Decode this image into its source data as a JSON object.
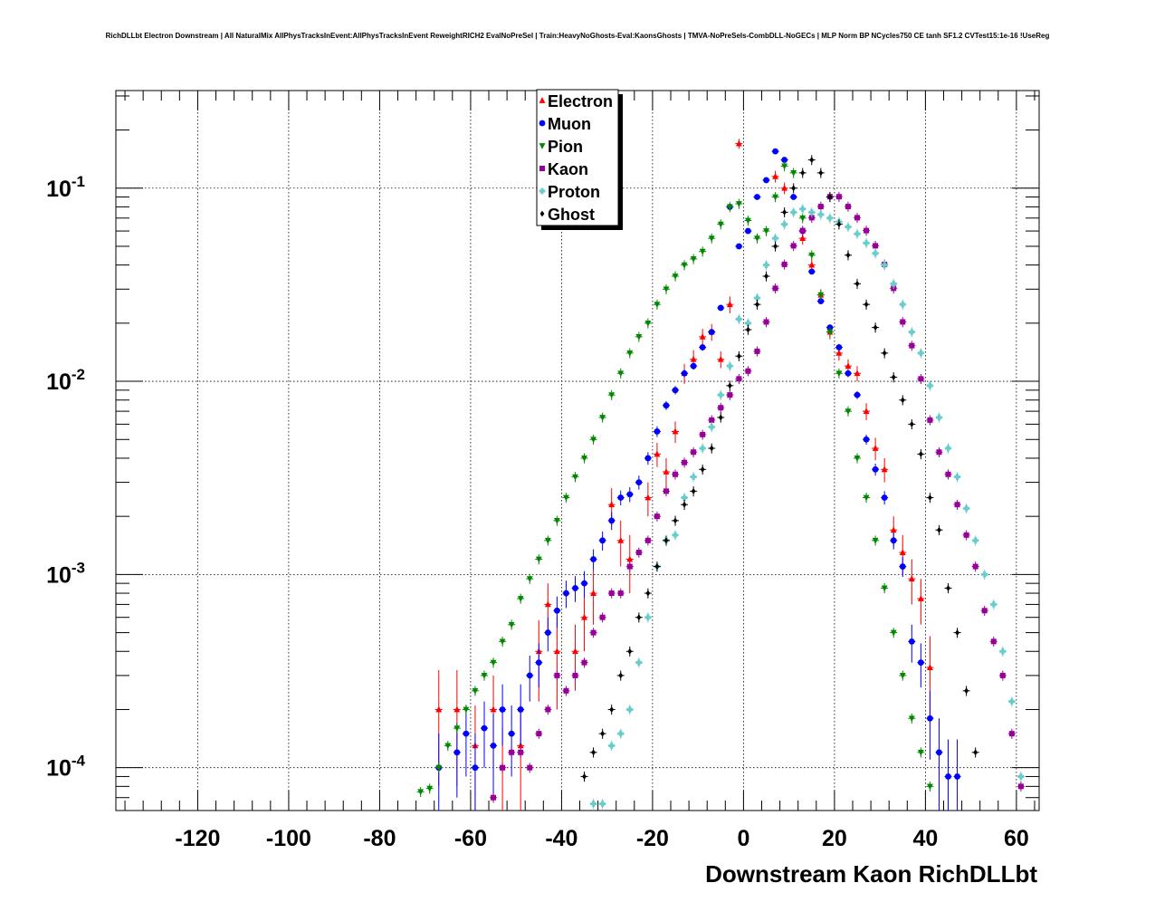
{
  "chart_data": {
    "type": "scatter",
    "title": "RichDLLbt Electron Downstream | All NaturalMix AllPhysTracksInEvent:AllPhysTracksInEvent ReweightRICH2 EvalNoPreSel | Train:HeavyNoGhosts-Eval:KaonsGhosts | TMVA-NoPreSels-CombDLL-NoGECs | MLP Norm BP NCycles750 CE tanh SF1.2 CVTest15:1e-16 !UseReg",
    "xlabel": "Downstream Kaon RichDLLbt",
    "ylabel": "",
    "xlim": [
      -138,
      65
    ],
    "ylim": [
      6e-05,
      0.32
    ],
    "yscale": "log",
    "grid": true,
    "legend_position": "top-center",
    "x_ticks": [
      -120,
      -100,
      -80,
      -60,
      -40,
      -20,
      0,
      20,
      40,
      60
    ],
    "x_tick_labels": [
      "-120",
      "-100",
      "-80",
      "-60",
      "-40",
      "-20",
      "0",
      "20",
      "40",
      "60"
    ],
    "y_ticks": [
      {
        "value": 0.1,
        "base": "10",
        "exp": "-1"
      },
      {
        "value": 0.01,
        "base": "10",
        "exp": "-2"
      },
      {
        "value": 0.001,
        "base": "10",
        "exp": "-3"
      },
      {
        "value": 0.0001,
        "base": "10",
        "exp": "-4"
      }
    ],
    "series": [
      {
        "name": "Electron",
        "color": "#ff0000",
        "marker": "triangle-up",
        "x": [
          -67,
          -63,
          -59,
          -55,
          -53,
          -49,
          -45,
          -43,
          -41,
          -37,
          -35,
          -33,
          -29,
          -27,
          -25,
          -21,
          -19,
          -17,
          -15,
          -13,
          -11,
          -9,
          -7,
          -5,
          -3,
          -1,
          7,
          9,
          13,
          15,
          17,
          19,
          21,
          23,
          25,
          27,
          29,
          31,
          33,
          35,
          37,
          39,
          41
        ],
        "values": [
          0.0002,
          0.0002,
          0.00013,
          0.0002,
          0.0001,
          0.00013,
          0.0004,
          0.0007,
          0.0004,
          0.0004,
          0.0006,
          0.0008,
          0.0023,
          0.0015,
          0.0012,
          0.0025,
          0.0042,
          0.0034,
          0.0055,
          0.011,
          0.013,
          0.017,
          0.018,
          0.013,
          0.025,
          0.17,
          0.115,
          0.1,
          0.055,
          0.04,
          0.028,
          0.018,
          0.014,
          0.012,
          0.011,
          0.007,
          0.0045,
          0.0035,
          0.0017,
          0.0013,
          0.00095,
          0.00075,
          0.00033
        ],
        "errors": [
          0.00012,
          0.00012,
          8e-05,
          0.0001,
          6e-05,
          8e-05,
          0.00018,
          0.0002,
          0.0002,
          0.00015,
          0.0002,
          0.00025,
          0.0005,
          0.0004,
          0.0004,
          0.0005,
          0.0006,
          0.0006,
          0.0007,
          0.0013,
          0.0015,
          0.0017,
          0.0018,
          0.0013,
          0.0025,
          0.01,
          0.008,
          0.007,
          0.004,
          0.003,
          0.002,
          0.0015,
          0.0012,
          0.001,
          0.001,
          0.0007,
          0.0006,
          0.0005,
          0.0003,
          0.0003,
          0.00025,
          0.0002,
          0.00015
        ]
      },
      {
        "name": "Muon",
        "color": "#0000ff",
        "marker": "circle",
        "x": [
          -67,
          -63,
          -61,
          -59,
          -57,
          -55,
          -53,
          -51,
          -49,
          -47,
          -45,
          -43,
          -41,
          -39,
          -37,
          -35,
          -33,
          -31,
          -29,
          -27,
          -25,
          -23,
          -21,
          -19,
          -17,
          -15,
          -13,
          -11,
          -9,
          -7,
          -5,
          -3,
          -1,
          1,
          3,
          5,
          7,
          9,
          11,
          13,
          15,
          17,
          19,
          21,
          23,
          25,
          27,
          29,
          31,
          33,
          35,
          37,
          39,
          41,
          43,
          45,
          47
        ],
        "values": [
          0.0001,
          0.00012,
          0.00015,
          0.0001,
          0.00016,
          0.00013,
          0.0002,
          0.00015,
          0.0002,
          0.0003,
          0.00035,
          0.0005,
          0.00065,
          0.0008,
          0.00085,
          0.0009,
          0.0012,
          0.0015,
          0.0019,
          0.0025,
          0.0026,
          0.003,
          0.004,
          0.0055,
          0.0075,
          0.009,
          0.011,
          0.012,
          0.015,
          0.018,
          0.024,
          0.08,
          0.05,
          0.06,
          0.09,
          0.11,
          0.155,
          0.14,
          0.09,
          0.06,
          0.037,
          0.026,
          0.019,
          0.015,
          0.011,
          0.0085,
          0.005,
          0.0035,
          0.0025,
          0.0015,
          0.0011,
          0.00045,
          0.00035,
          0.00018,
          0.00012,
          9e-05,
          9e-05
        ],
        "errors": [
          5e-05,
          5e-05,
          6e-05,
          5e-05,
          6e-05,
          6e-05,
          7e-05,
          6e-05,
          7e-05,
          8e-05,
          9e-05,
          0.0001,
          0.00012,
          0.00013,
          0.00013,
          0.00014,
          0.00015,
          0.00017,
          0.0002,
          0.00022,
          0.00023,
          0.00025,
          0.0003,
          0.00035,
          0.0004,
          0.00045,
          0.0005,
          0.0005,
          0.0006,
          0.0007,
          0.0008,
          0.002,
          0.0015,
          0.0016,
          0.002,
          0.002,
          0.003,
          0.003,
          0.002,
          0.0015,
          0.001,
          0.0008,
          0.0007,
          0.0006,
          0.0005,
          0.0004,
          0.0003,
          0.00025,
          0.0002,
          0.00015,
          0.00013,
          0.0001,
          9e-05,
          7e-05,
          6e-05,
          5e-05,
          5e-05
        ]
      },
      {
        "name": "Pion",
        "color": "#008800",
        "marker": "triangle-down",
        "x": [
          -71,
          -69,
          -67,
          -65,
          -63,
          -61,
          -59,
          -57,
          -55,
          -53,
          -51,
          -49,
          -47,
          -45,
          -43,
          -41,
          -39,
          -37,
          -35,
          -33,
          -31,
          -29,
          -27,
          -25,
          -23,
          -21,
          -19,
          -17,
          -15,
          -13,
          -11,
          -9,
          -7,
          -5,
          -3,
          -1,
          1,
          3,
          5,
          7,
          9,
          11,
          13,
          15,
          17,
          19,
          21,
          23,
          25,
          27,
          29,
          31,
          33,
          35,
          37,
          39,
          41
        ],
        "values": [
          7.5e-05,
          7.8e-05,
          0.0001,
          0.00013,
          0.00016,
          0.0002,
          0.00025,
          0.0003,
          0.00035,
          0.00045,
          0.00055,
          0.00075,
          0.00095,
          0.0012,
          0.0015,
          0.0019,
          0.0025,
          0.0032,
          0.004,
          0.005,
          0.0065,
          0.0085,
          0.011,
          0.014,
          0.017,
          0.02,
          0.025,
          0.03,
          0.035,
          0.04,
          0.043,
          0.047,
          0.055,
          0.065,
          0.08,
          0.083,
          0.068,
          0.055,
          0.06,
          0.09,
          0.13,
          0.12,
          0.07,
          0.045,
          0.028,
          0.018,
          0.011,
          0.007,
          0.004,
          0.0025,
          0.0015,
          0.00085,
          0.0005,
          0.0003,
          0.00018,
          0.00012,
          8e-05
        ]
      },
      {
        "name": "Kaon",
        "color": "#990099",
        "marker": "square",
        "x": [
          -55,
          -53,
          -51,
          -49,
          -47,
          -45,
          -43,
          -41,
          -39,
          -37,
          -35,
          -33,
          -31,
          -29,
          -27,
          -25,
          -23,
          -21,
          -19,
          -17,
          -15,
          -13,
          -11,
          -9,
          -7,
          -5,
          -3,
          -1,
          1,
          3,
          5,
          7,
          9,
          11,
          13,
          15,
          17,
          19,
          21,
          23,
          25,
          27,
          29,
          31,
          33,
          35,
          37,
          39,
          41,
          43,
          45,
          47,
          49,
          51,
          53,
          55,
          57,
          59,
          61
        ],
        "values": [
          7e-05,
          0.0001,
          0.00012,
          0.00012,
          0.0001,
          0.00015,
          0.0002,
          0.0003,
          0.00025,
          0.0003,
          0.00035,
          0.0005,
          0.0006,
          0.0008,
          0.0008,
          0.0011,
          0.0013,
          0.0015,
          0.002,
          0.0027,
          0.0033,
          0.0038,
          0.0043,
          0.0053,
          0.0063,
          0.0073,
          0.0085,
          0.0103,
          0.0113,
          0.0143,
          0.0203,
          0.0303,
          0.0403,
          0.0503,
          0.0603,
          0.0703,
          0.0803,
          0.0903,
          0.0903,
          0.0803,
          0.0703,
          0.0603,
          0.0503,
          0.0403,
          0.0303,
          0.0203,
          0.0153,
          0.0103,
          0.0063,
          0.0043,
          0.0033,
          0.0023,
          0.0016,
          0.0011,
          0.00065,
          0.00045,
          0.0003,
          0.00015,
          8e-05
        ]
      },
      {
        "name": "Proton",
        "color": "#66cccc",
        "marker": "star",
        "x": [
          -33,
          -31,
          -29,
          -27,
          -25,
          -23,
          -21,
          -19,
          -17,
          -15,
          -13,
          -11,
          -9,
          -7,
          -5,
          -3,
          -1,
          1,
          3,
          5,
          7,
          9,
          11,
          13,
          15,
          17,
          19,
          21,
          23,
          25,
          27,
          29,
          31,
          33,
          35,
          37,
          39,
          41,
          43,
          45,
          47,
          49,
          51,
          53,
          55,
          57,
          59,
          61
        ],
        "values": [
          6.5e-05,
          6.5e-05,
          0.00013,
          0.00015,
          0.0002,
          0.00035,
          0.0006,
          0.0011,
          0.0015,
          0.0016,
          0.0025,
          0.0032,
          0.0045,
          0.0058,
          0.0085,
          0.012,
          0.021,
          0.02,
          0.027,
          0.04,
          0.055,
          0.065,
          0.075,
          0.078,
          0.075,
          0.073,
          0.07,
          0.067,
          0.063,
          0.058,
          0.052,
          0.046,
          0.04,
          0.032,
          0.025,
          0.018,
          0.014,
          0.0095,
          0.0065,
          0.0045,
          0.0032,
          0.0022,
          0.0015,
          0.001,
          0.0007,
          0.0004,
          0.00022,
          9e-05
        ]
      },
      {
        "name": "Ghost",
        "color": "#000000",
        "marker": "diamond",
        "x": [
          -35,
          -33,
          -31,
          -29,
          -27,
          -25,
          -23,
          -21,
          -19,
          -17,
          -15,
          -13,
          -11,
          -9,
          -7,
          -5,
          -3,
          -1,
          1,
          3,
          5,
          7,
          9,
          11,
          13,
          15,
          17,
          19,
          21,
          23,
          25,
          27,
          29,
          31,
          33,
          35,
          37,
          39,
          41,
          43,
          45,
          47,
          49,
          51
        ],
        "values": [
          9e-05,
          0.00012,
          0.00015,
          0.0002,
          0.0003,
          0.0004,
          0.0006,
          0.0008,
          0.0011,
          0.0015,
          0.0019,
          0.0023,
          0.0027,
          0.0035,
          0.0045,
          0.0065,
          0.0095,
          0.0135,
          0.0185,
          0.025,
          0.035,
          0.05,
          0.075,
          0.1,
          0.12,
          0.14,
          0.12,
          0.09,
          0.065,
          0.045,
          0.032,
          0.025,
          0.019,
          0.014,
          0.0105,
          0.008,
          0.006,
          0.0042,
          0.0025,
          0.0017,
          0.00085,
          0.0005,
          0.00025,
          0.00012
        ]
      }
    ]
  }
}
